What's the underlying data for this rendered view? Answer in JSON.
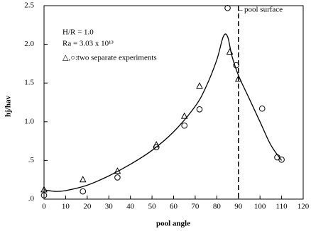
{
  "chart_data": {
    "type": "scatter",
    "xlabel": "pool angle",
    "ylabel": "hj/hav",
    "xlim": [
      0,
      120
    ],
    "ylim": [
      0,
      2.5
    ],
    "xticks": [
      0,
      10,
      20,
      30,
      40,
      50,
      60,
      70,
      80,
      90,
      100,
      110,
      120
    ],
    "yticks": [
      {
        "value": 0,
        "label": ".0"
      },
      {
        "value": 0.5,
        "label": ".5"
      },
      {
        "value": 1,
        "label": "1.0"
      },
      {
        "value": 1.5,
        "label": "1.5"
      },
      {
        "value": 2,
        "label": "2.0"
      },
      {
        "value": 2.5,
        "label": "2.5"
      }
    ],
    "annotations": [
      "H/R = 1.0",
      "Ra = 3.03 x 10¹³",
      "△,○:two separate experiments",
      "←pool surface"
    ],
    "vline": 90,
    "series": [
      {
        "marker": "triangle",
        "color": "#000000",
        "x": [
          0,
          18,
          34,
          52,
          65,
          72,
          86,
          90
        ],
        "values": [
          0.12,
          0.25,
          0.36,
          0.7,
          1.07,
          1.46,
          1.9,
          1.55
        ]
      },
      {
        "marker": "circle",
        "color": "#000000",
        "x": [
          0,
          18,
          34,
          52,
          65,
          72,
          85,
          89,
          101,
          108,
          110
        ],
        "values": [
          0.05,
          0.1,
          0.28,
          0.67,
          0.95,
          1.16,
          2.47,
          1.73,
          1.17,
          0.54,
          0.51
        ]
      },
      {
        "marker": "line",
        "color": "#000000",
        "x": [
          0,
          5,
          10,
          20,
          30,
          40,
          50,
          60,
          70,
          75,
          80,
          83,
          85,
          87,
          90,
          95,
          100,
          105,
          110
        ],
        "values": [
          0.12,
          0.1,
          0.11,
          0.18,
          0.3,
          0.45,
          0.63,
          0.87,
          1.2,
          1.45,
          1.8,
          2.1,
          2.1,
          1.85,
          1.6,
          1.3,
          1.0,
          0.7,
          0.5
        ]
      }
    ]
  }
}
